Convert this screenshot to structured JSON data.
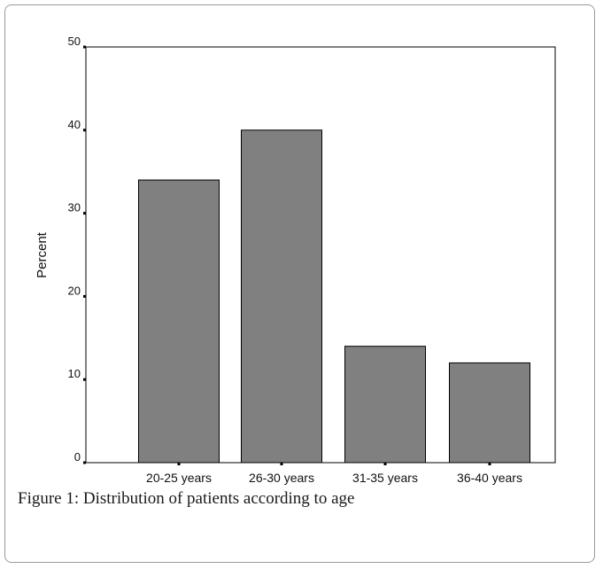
{
  "caption": "Figure 1: Distribution of patients according to age",
  "chart_data": {
    "type": "bar",
    "categories": [
      "20-25 years",
      "26-30 years",
      "31-35 years",
      "36-40 years"
    ],
    "values": [
      34,
      40,
      14,
      12
    ],
    "xlabel": "",
    "ylabel": "Percent",
    "ylim": [
      0,
      50
    ],
    "yticks": [
      0,
      10,
      20,
      30,
      40,
      50
    ],
    "grid": false,
    "bar_color": "#808080",
    "bar_edge_color": "#000000"
  }
}
